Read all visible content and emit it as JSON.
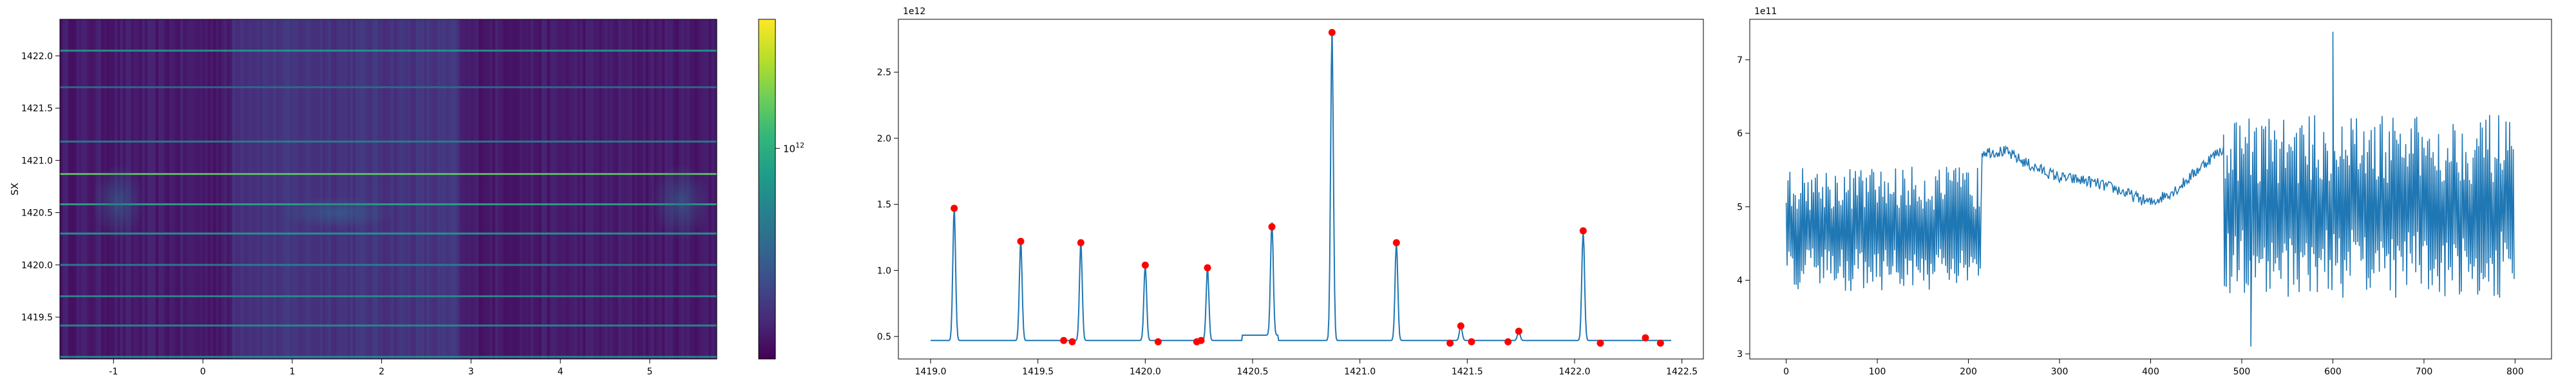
{
  "palette": {
    "line": "#1f77b4",
    "peak": "#ff0000",
    "cmap": [
      "#440154",
      "#482878",
      "#3e4a89",
      "#31688e",
      "#26828e",
      "#1f9e89",
      "#35b779",
      "#6ece58",
      "#b5de2b",
      "#fde725"
    ]
  },
  "chart_data": [
    {
      "type": "heatmap",
      "xlabel": "",
      "ylabel": "SX",
      "xlim": [
        -1.6,
        5.75
      ],
      "ylim": [
        1419.1,
        1422.35
      ],
      "x_ticks": [
        "-1",
        "0",
        "1",
        "2",
        "3",
        "4",
        "5"
      ],
      "x_tick_values": [
        -1,
        0,
        1,
        2,
        3,
        4,
        5
      ],
      "y_ticks": [
        "1419.5",
        "1420.0",
        "1420.5",
        "1421.0",
        "1421.5",
        "1422.0"
      ],
      "y_tick_values": [
        1419.5,
        1420.0,
        1420.5,
        1421.0,
        1421.5,
        1422.0
      ],
      "bright_rows": [
        {
          "y": 1422.05,
          "level": 0.55
        },
        {
          "y": 1421.7,
          "level": 0.35
        },
        {
          "y": 1421.18,
          "level": 0.45
        },
        {
          "y": 1420.87,
          "level": 0.75
        },
        {
          "y": 1420.58,
          "level": 0.6
        },
        {
          "y": 1420.3,
          "level": 0.55
        },
        {
          "y": 1420.0,
          "level": 0.45
        },
        {
          "y": 1419.7,
          "level": 0.5
        },
        {
          "y": 1419.42,
          "level": 0.5
        },
        {
          "y": 1419.12,
          "level": 0.5
        }
      ],
      "colorbar": {
        "scale": "log",
        "tick_label": "10",
        "tick_exponent": "12",
        "tick_position": 0.62
      }
    },
    {
      "type": "line",
      "offset_label": "1e12",
      "xlim": [
        1418.85,
        1422.6
      ],
      "ylim": [
        0.33,
        2.9
      ],
      "x_ticks": [
        "1419.0",
        "1419.5",
        "1420.0",
        "1420.5",
        "1421.0",
        "1421.5",
        "1422.0",
        "1422.5"
      ],
      "x_tick_values": [
        1419.0,
        1419.5,
        1420.0,
        1420.5,
        1421.0,
        1421.5,
        1422.0,
        1422.5
      ],
      "y_ticks": [
        "0.5",
        "1.0",
        "1.5",
        "2.0",
        "2.5"
      ],
      "y_tick_values": [
        0.5,
        1.0,
        1.5,
        2.0,
        2.5
      ],
      "baseline": 0.47,
      "peaks": [
        {
          "x": 1419.11,
          "y": 1.47
        },
        {
          "x": 1419.42,
          "y": 1.22
        },
        {
          "x": 1419.62,
          "y": 0.47
        },
        {
          "x": 1419.66,
          "y": 0.46
        },
        {
          "x": 1419.7,
          "y": 1.21
        },
        {
          "x": 1420.0,
          "y": 1.04
        },
        {
          "x": 1420.06,
          "y": 0.46
        },
        {
          "x": 1420.24,
          "y": 0.46
        },
        {
          "x": 1420.26,
          "y": 0.47
        },
        {
          "x": 1420.29,
          "y": 1.02
        },
        {
          "x": 1420.59,
          "y": 1.33
        },
        {
          "x": 1420.87,
          "y": 2.8
        },
        {
          "x": 1421.17,
          "y": 1.21
        },
        {
          "x": 1421.42,
          "y": 0.45
        },
        {
          "x": 1421.47,
          "y": 0.58
        },
        {
          "x": 1421.52,
          "y": 0.46
        },
        {
          "x": 1421.69,
          "y": 0.46
        },
        {
          "x": 1421.74,
          "y": 0.54
        },
        {
          "x": 1422.04,
          "y": 1.3
        },
        {
          "x": 1422.12,
          "y": 0.45
        },
        {
          "x": 1422.33,
          "y": 0.49
        },
        {
          "x": 1422.4,
          "y": 0.45
        }
      ]
    },
    {
      "type": "line",
      "offset_label": "1e11",
      "xlim": [
        -40,
        840
      ],
      "ylim": [
        2.93,
        7.55
      ],
      "x_ticks": [
        "0",
        "100",
        "200",
        "300",
        "400",
        "500",
        "600",
        "700",
        "800"
      ],
      "x_tick_values": [
        0,
        100,
        200,
        300,
        400,
        500,
        600,
        700,
        800
      ],
      "y_ticks": [
        "3",
        "4",
        "5",
        "6",
        "7"
      ],
      "y_tick_values": [
        3,
        4,
        5,
        6,
        7
      ],
      "segments": [
        {
          "x_start": 0,
          "x_end": 215,
          "mean": 4.7,
          "amplitude": 0.85,
          "points": 215
        },
        {
          "x_start": 215,
          "x_end": 480,
          "smooth": [
            [
              215,
              5.75
            ],
            [
              240,
              5.75
            ],
            [
              270,
              5.55
            ],
            [
              300,
              5.4
            ],
            [
              330,
              5.35
            ],
            [
              360,
              5.25
            ],
            [
              400,
              5.05
            ],
            [
              430,
              5.25
            ],
            [
              460,
              5.6
            ],
            [
              480,
              5.8
            ]
          ],
          "noise": 0.08
        },
        {
          "x_start": 480,
          "x_end": 800,
          "mean": 5.0,
          "amplitude": 1.25,
          "points": 320
        }
      ],
      "max_point": {
        "x": 600,
        "y": 7.38
      },
      "min_point": {
        "x": 510,
        "y": 3.1
      }
    }
  ]
}
